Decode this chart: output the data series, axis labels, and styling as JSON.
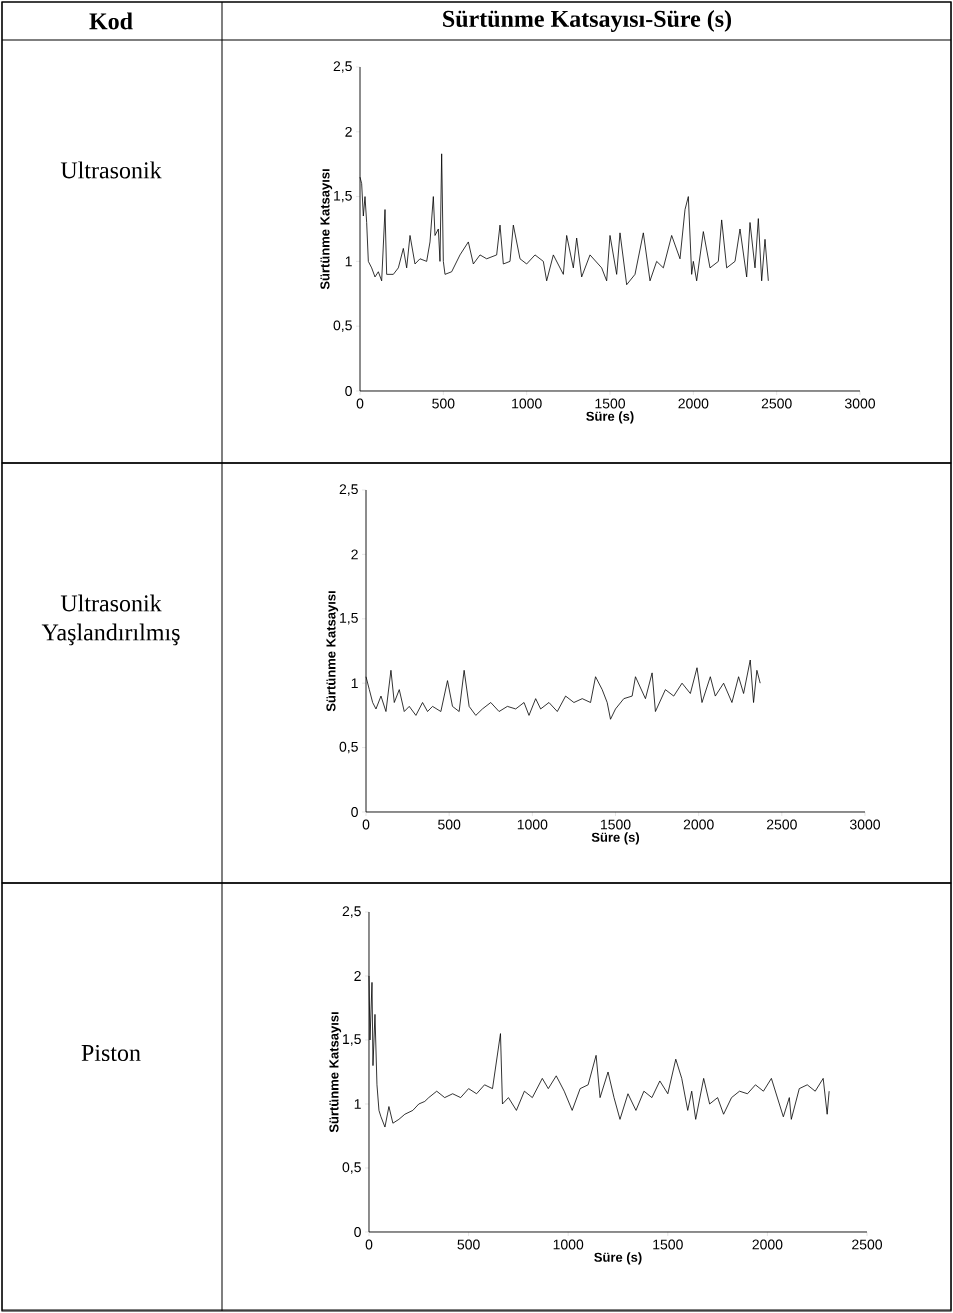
{
  "chart_data": [
    {
      "type": "line",
      "xlabel": "Süre (s)",
      "ylabel": "Sürtünme Katsayısı",
      "annotations": [
        "Ultrasonik",
        "Kod",
        "Sürtünme Katsayısı-Süre (s)"
      ],
      "xlim": [
        0,
        3000
      ],
      "ylim": [
        0,
        2.5
      ],
      "xticks": [
        0,
        500,
        1000,
        1500,
        2000,
        2500,
        3000
      ],
      "yticks": [
        0,
        {
          "value": 0.5,
          "label": "0,5"
        },
        1,
        {
          "value": 1.5,
          "label": "1,5"
        },
        2,
        {
          "value": 2.5,
          "label": "2,5"
        }
      ],
      "series": [
        {
          "color": "#000000",
          "x": [
            0,
            10,
            20,
            30,
            40,
            50,
            70,
            90,
            110,
            130,
            150,
            160,
            200,
            230,
            260,
            280,
            300,
            330,
            360,
            400,
            420,
            440,
            450,
            470,
            480,
            490,
            500,
            510,
            550,
            600,
            650,
            680,
            720,
            760,
            820,
            840,
            860,
            900,
            920,
            960,
            1000,
            1050,
            1100,
            1120,
            1160,
            1220,
            1240,
            1280,
            1300,
            1330,
            1380,
            1450,
            1480,
            1500,
            1540,
            1560,
            1600,
            1650,
            1700,
            1740,
            1780,
            1820,
            1870,
            1920,
            1950,
            1970,
            1990,
            2000,
            2020,
            2060,
            2100,
            2150,
            2170,
            2200,
            2250,
            2280,
            2320,
            2340,
            2370,
            2390,
            2410,
            2430,
            2450
          ],
          "values": [
            1.65,
            1.6,
            1.35,
            1.5,
            1.3,
            1.0,
            0.95,
            0.88,
            0.92,
            0.85,
            1.4,
            0.9,
            0.9,
            0.95,
            1.1,
            0.95,
            1.2,
            0.98,
            1.02,
            1.0,
            1.15,
            1.5,
            1.2,
            1.25,
            1.0,
            1.83,
            1.0,
            0.9,
            0.92,
            1.05,
            1.15,
            0.98,
            1.05,
            1.02,
            1.05,
            1.28,
            0.98,
            1.0,
            1.28,
            1.02,
            0.98,
            1.05,
            1.0,
            0.85,
            1.05,
            0.9,
            1.2,
            0.95,
            1.18,
            0.88,
            1.05,
            0.95,
            0.85,
            1.2,
            0.9,
            1.22,
            0.82,
            0.9,
            1.22,
            0.85,
            1.0,
            0.95,
            1.2,
            1.02,
            1.4,
            1.5,
            0.9,
            1.0,
            0.85,
            1.23,
            0.95,
            1.0,
            1.32,
            0.95,
            1.0,
            1.25,
            0.88,
            1.3,
            0.95,
            1.33,
            0.85,
            1.17,
            0.85
          ]
        }
      ]
    },
    {
      "type": "line",
      "annotations": [
        "Ultrasonik Yaşlandırılmış"
      ],
      "xlabel": "Süre (s)",
      "ylabel": "Sürtünme Katsayısı",
      "xlim": [
        0,
        3000
      ],
      "ylim": [
        0,
        2.5
      ],
      "xticks": [
        0,
        500,
        1000,
        1500,
        2000,
        2500,
        3000
      ],
      "yticks": [
        0,
        {
          "value": 0.5,
          "label": "0,5"
        },
        1,
        {
          "value": 1.5,
          "label": "1,5"
        },
        2,
        {
          "value": 2.5,
          "label": "2,5"
        }
      ],
      "series": [
        {
          "color": "#000000",
          "x": [
            0,
            20,
            40,
            60,
            90,
            120,
            150,
            170,
            200,
            230,
            260,
            300,
            340,
            370,
            400,
            450,
            490,
            520,
            560,
            590,
            620,
            660,
            700,
            750,
            800,
            850,
            900,
            950,
            980,
            1020,
            1050,
            1100,
            1150,
            1200,
            1250,
            1300,
            1350,
            1380,
            1420,
            1450,
            1470,
            1500,
            1550,
            1600,
            1620,
            1680,
            1720,
            1740,
            1800,
            1850,
            1900,
            1950,
            1990,
            2020,
            2070,
            2100,
            2150,
            2200,
            2240,
            2270,
            2310,
            2330,
            2350,
            2370
          ],
          "values": [
            1.05,
            0.95,
            0.85,
            0.8,
            0.9,
            0.78,
            1.1,
            0.85,
            0.95,
            0.78,
            0.82,
            0.75,
            0.85,
            0.78,
            0.82,
            0.78,
            1.02,
            0.82,
            0.78,
            1.1,
            0.82,
            0.75,
            0.8,
            0.85,
            0.78,
            0.82,
            0.8,
            0.85,
            0.75,
            0.88,
            0.8,
            0.85,
            0.78,
            0.9,
            0.85,
            0.88,
            0.85,
            1.05,
            0.95,
            0.85,
            0.72,
            0.8,
            0.88,
            0.9,
            1.05,
            0.88,
            1.08,
            0.78,
            0.95,
            0.9,
            1.0,
            0.92,
            1.12,
            0.85,
            1.05,
            0.9,
            1.0,
            0.85,
            1.05,
            0.92,
            1.18,
            0.85,
            1.1,
            1.0
          ]
        }
      ]
    },
    {
      "type": "line",
      "annotations": [
        "Piston"
      ],
      "xlabel": "Süre (s)",
      "ylabel": "Sürtünme Katsayısı",
      "xlim": [
        0,
        2500
      ],
      "ylim": [
        0,
        2.5
      ],
      "xticks": [
        0,
        500,
        1000,
        1500,
        2000,
        2500
      ],
      "yticks": [
        0,
        {
          "value": 0.5,
          "label": "0,5"
        },
        1,
        {
          "value": 1.5,
          "label": "1,5"
        },
        2,
        {
          "value": 2.5,
          "label": "2,5"
        }
      ],
      "series": [
        {
          "color": "#000000",
          "x": [
            0,
            5,
            15,
            20,
            30,
            40,
            50,
            60,
            80,
            100,
            120,
            150,
            180,
            220,
            250,
            280,
            300,
            340,
            380,
            420,
            460,
            500,
            540,
            580,
            620,
            660,
            670,
            700,
            740,
            780,
            820,
            870,
            900,
            940,
            980,
            1020,
            1060,
            1100,
            1140,
            1160,
            1200,
            1230,
            1260,
            1300,
            1340,
            1380,
            1420,
            1460,
            1500,
            1540,
            1570,
            1600,
            1620,
            1640,
            1680,
            1710,
            1750,
            1780,
            1820,
            1860,
            1900,
            1940,
            1980,
            2020,
            2060,
            2080,
            2110,
            2120,
            2160,
            2200,
            2240,
            2280,
            2300,
            2310
          ],
          "values": [
            2.0,
            1.5,
            1.95,
            1.3,
            1.7,
            1.15,
            0.95,
            0.9,
            0.82,
            0.98,
            0.85,
            0.88,
            0.92,
            0.95,
            1.0,
            1.02,
            1.05,
            1.1,
            1.05,
            1.08,
            1.05,
            1.12,
            1.08,
            1.15,
            1.12,
            1.55,
            1.0,
            1.05,
            0.95,
            1.1,
            1.05,
            1.2,
            1.12,
            1.22,
            1.1,
            0.95,
            1.12,
            1.15,
            1.38,
            1.05,
            1.25,
            1.05,
            0.88,
            1.08,
            0.95,
            1.1,
            1.05,
            1.18,
            1.08,
            1.35,
            1.2,
            0.95,
            1.1,
            0.88,
            1.2,
            1.0,
            1.05,
            0.92,
            1.05,
            1.1,
            1.08,
            1.15,
            1.1,
            1.2,
            1.0,
            0.9,
            1.05,
            0.88,
            1.12,
            1.15,
            1.1,
            1.2,
            0.92,
            1.1
          ]
        }
      ]
    }
  ]
}
